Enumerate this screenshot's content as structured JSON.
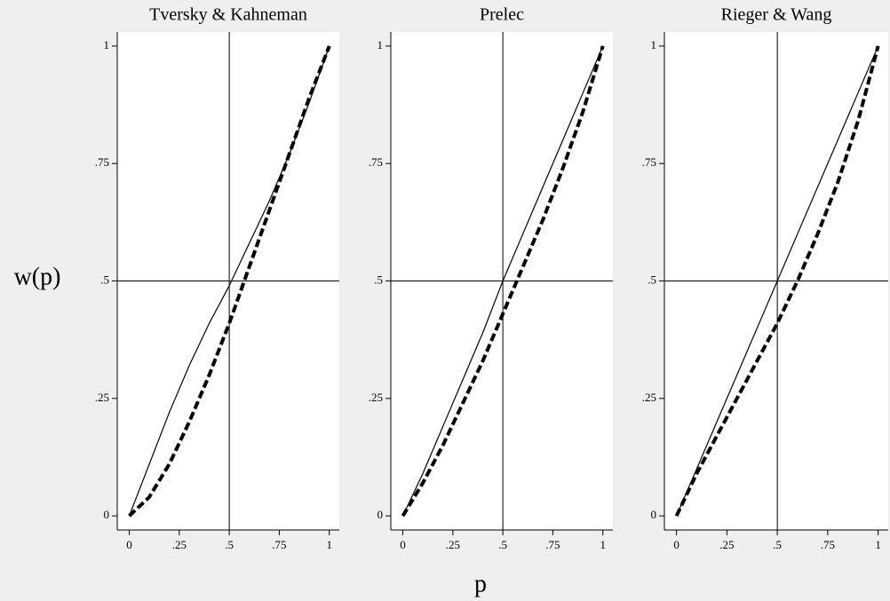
{
  "y_label": "w(p)",
  "x_label": "p",
  "chart_data": [
    {
      "type": "line",
      "title": "Tversky & Kahneman",
      "x": [
        0,
        0.1,
        0.2,
        0.3,
        0.4,
        0.5,
        0.6,
        0.7,
        0.8,
        0.9,
        1
      ],
      "series": [
        {
          "color": "#000000",
          "style": "solid",
          "values": [
            0,
            0.11,
            0.22,
            0.32,
            0.41,
            0.49,
            0.58,
            0.67,
            0.77,
            0.88,
            1
          ]
        },
        {
          "color": "#000000",
          "style": "dashed",
          "values": [
            0,
            0.04,
            0.11,
            0.2,
            0.3,
            0.41,
            0.53,
            0.65,
            0.77,
            0.89,
            1
          ]
        }
      ],
      "xlim": [
        -0.06,
        1.05
      ],
      "ylim": [
        -0.03,
        1.03
      ],
      "xticks": [
        0,
        {
          "value": 0.25,
          "label": ".25"
        },
        {
          "value": 0.5,
          "label": ".5"
        },
        {
          "value": 0.75,
          "label": ".75"
        },
        1
      ],
      "yticks": [
        0,
        {
          "value": 0.25,
          "label": ".25"
        },
        {
          "value": 0.5,
          "label": ".5"
        },
        {
          "value": 0.75,
          "label": ".75"
        },
        1
      ],
      "hlines": [
        0.5
      ],
      "vlines": [
        0.5
      ]
    },
    {
      "type": "line",
      "title": "Prelec",
      "x": [
        0,
        0.1,
        0.2,
        0.3,
        0.4,
        0.5,
        0.6,
        0.7,
        0.8,
        0.9,
        1
      ],
      "series": [
        {
          "color": "#000000",
          "style": "solid",
          "values": [
            0,
            0.09,
            0.19,
            0.29,
            0.39,
            0.5,
            0.6,
            0.7,
            0.8,
            0.9,
            1
          ]
        },
        {
          "color": "#000000",
          "style": "dashed",
          "values": [
            0,
            0.07,
            0.15,
            0.24,
            0.33,
            0.43,
            0.53,
            0.63,
            0.74,
            0.86,
            1
          ]
        }
      ],
      "xlim": [
        -0.06,
        1.05
      ],
      "ylim": [
        -0.03,
        1.03
      ],
      "xticks": [
        0,
        {
          "value": 0.25,
          "label": ".25"
        },
        {
          "value": 0.5,
          "label": ".5"
        },
        {
          "value": 0.75,
          "label": ".75"
        },
        1
      ],
      "yticks": [
        0,
        {
          "value": 0.25,
          "label": ".25"
        },
        {
          "value": 0.5,
          "label": ".5"
        },
        {
          "value": 0.75,
          "label": ".75"
        },
        1
      ],
      "hlines": [
        0.5
      ],
      "vlines": [
        0.5
      ]
    },
    {
      "type": "line",
      "title": "Rieger & Wang",
      "x": [
        0,
        0.1,
        0.2,
        0.3,
        0.4,
        0.5,
        0.6,
        0.7,
        0.8,
        0.9,
        1
      ],
      "series": [
        {
          "color": "#000000",
          "style": "solid",
          "values": [
            0,
            0.1,
            0.2,
            0.3,
            0.4,
            0.5,
            0.6,
            0.7,
            0.8,
            0.9,
            1
          ]
        },
        {
          "color": "#000000",
          "style": "dashed",
          "values": [
            0,
            0.09,
            0.17,
            0.25,
            0.33,
            0.41,
            0.5,
            0.6,
            0.71,
            0.84,
            1
          ]
        }
      ],
      "xlim": [
        -0.06,
        1.05
      ],
      "ylim": [
        -0.03,
        1.03
      ],
      "xticks": [
        0,
        {
          "value": 0.25,
          "label": ".25"
        },
        {
          "value": 0.5,
          "label": ".5"
        },
        {
          "value": 0.75,
          "label": ".75"
        },
        1
      ],
      "yticks": [
        0,
        {
          "value": 0.25,
          "label": ".25"
        },
        {
          "value": 0.5,
          "label": ".5"
        },
        {
          "value": 0.75,
          "label": ".75"
        },
        1
      ],
      "hlines": [
        0.5
      ],
      "vlines": [
        0.5
      ]
    }
  ]
}
